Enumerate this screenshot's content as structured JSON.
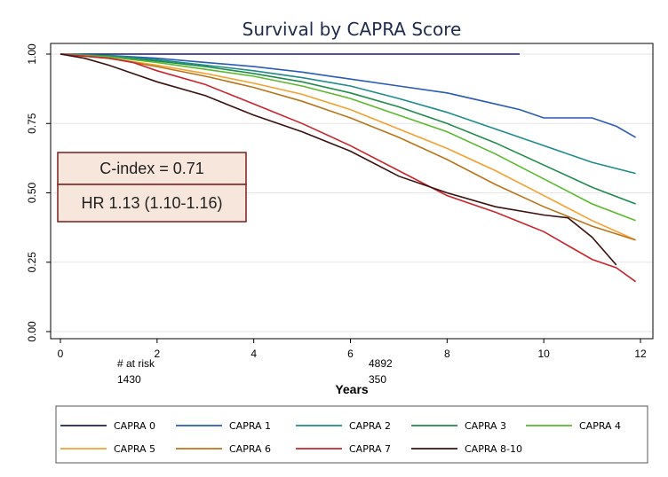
{
  "chart_data": {
    "type": "line",
    "title": "Survival by CAPRA Score",
    "xlabel": "Years",
    "ylabel": "",
    "xlim": [
      0,
      12
    ],
    "ylim": [
      0,
      1
    ],
    "xticks": [
      "0",
      "2",
      "4",
      "6",
      "8",
      "10",
      "12"
    ],
    "xtick_values": [
      0,
      2,
      4,
      6,
      8,
      10,
      12
    ],
    "yticks": [
      "0.00",
      "0.25",
      "0.50",
      "0.75",
      "1.00"
    ],
    "ytick_values": [
      0,
      0.25,
      0.5,
      0.75,
      1.0
    ],
    "grid": true,
    "legend_position": "bottom",
    "annotations": {
      "cindex": "C-index = 0.71",
      "hr": "HR 1.13 (1.10-1.16)"
    },
    "at_risk": {
      "label": "# at risk",
      "values": [
        {
          "label": "1430",
          "x": 1.2
        },
        {
          "label": "4892",
          "x": 6.4
        },
        {
          "label": "350",
          "x": 6.4
        }
      ]
    },
    "series": [
      {
        "name": "CAPRA 0",
        "color": "#1b1f5e",
        "x": [
          0,
          9.5
        ],
        "y": [
          1.0,
          1.0
        ]
      },
      {
        "name": "CAPRA 1",
        "color": "#2a5bb5",
        "x": [
          0,
          1,
          2,
          3,
          4,
          5,
          6,
          7,
          8,
          9,
          9.5,
          10,
          11,
          11.5,
          11.9
        ],
        "y": [
          1.0,
          0.995,
          0.985,
          0.97,
          0.955,
          0.935,
          0.91,
          0.885,
          0.86,
          0.82,
          0.8,
          0.77,
          0.77,
          0.74,
          0.7
        ]
      },
      {
        "name": "CAPRA 2",
        "color": "#1e8a8a",
        "x": [
          0,
          1,
          2,
          3,
          4,
          5,
          6,
          7,
          8,
          9,
          10,
          11,
          11.9
        ],
        "y": [
          1.0,
          0.995,
          0.98,
          0.96,
          0.94,
          0.915,
          0.885,
          0.84,
          0.79,
          0.73,
          0.67,
          0.61,
          0.57
        ]
      },
      {
        "name": "CAPRA 3",
        "color": "#1f8a4a",
        "x": [
          0,
          1,
          2,
          3,
          4,
          5,
          6,
          7,
          8,
          9,
          10,
          11,
          11.9
        ],
        "y": [
          1.0,
          0.99,
          0.975,
          0.955,
          0.93,
          0.9,
          0.86,
          0.81,
          0.75,
          0.68,
          0.6,
          0.52,
          0.46
        ]
      },
      {
        "name": "CAPRA 4",
        "color": "#5ab82e",
        "x": [
          0,
          1,
          2,
          3,
          4,
          5,
          6,
          7,
          8,
          9,
          10,
          11,
          11.9
        ],
        "y": [
          1.0,
          0.99,
          0.97,
          0.945,
          0.92,
          0.885,
          0.84,
          0.78,
          0.72,
          0.64,
          0.55,
          0.46,
          0.4
        ]
      },
      {
        "name": "CAPRA 5",
        "color": "#f5a030",
        "x": [
          0,
          1,
          2,
          3,
          4,
          5,
          6,
          7,
          8,
          9,
          10,
          11,
          11.9
        ],
        "y": [
          1.0,
          0.985,
          0.96,
          0.93,
          0.895,
          0.855,
          0.8,
          0.73,
          0.66,
          0.58,
          0.49,
          0.4,
          0.33
        ]
      },
      {
        "name": "CAPRA 6",
        "color": "#b8741a",
        "x": [
          0,
          1,
          2,
          3,
          4,
          5,
          6,
          7,
          8,
          9,
          10,
          11,
          11.9
        ],
        "y": [
          1.0,
          0.985,
          0.955,
          0.92,
          0.88,
          0.83,
          0.77,
          0.7,
          0.62,
          0.53,
          0.45,
          0.38,
          0.33
        ]
      },
      {
        "name": "CAPRA 7",
        "color": "#c8252a",
        "x": [
          0,
          1,
          1.5,
          2,
          3,
          4,
          5,
          6,
          7,
          8,
          9,
          10,
          10.5,
          11,
          11.5,
          11.9
        ],
        "y": [
          1.0,
          0.985,
          0.97,
          0.94,
          0.89,
          0.82,
          0.75,
          0.67,
          0.58,
          0.49,
          0.43,
          0.36,
          0.31,
          0.26,
          0.23,
          0.18
        ]
      },
      {
        "name": "CAPRA 8-10",
        "color": "#3b1010",
        "x": [
          0,
          0.5,
          1,
          1.5,
          2,
          3,
          4,
          5,
          6,
          7,
          8,
          9,
          10,
          10.5,
          11,
          11.5
        ],
        "y": [
          1.0,
          0.985,
          0.96,
          0.93,
          0.9,
          0.85,
          0.78,
          0.72,
          0.65,
          0.56,
          0.5,
          0.45,
          0.42,
          0.41,
          0.34,
          0.24
        ]
      }
    ]
  }
}
